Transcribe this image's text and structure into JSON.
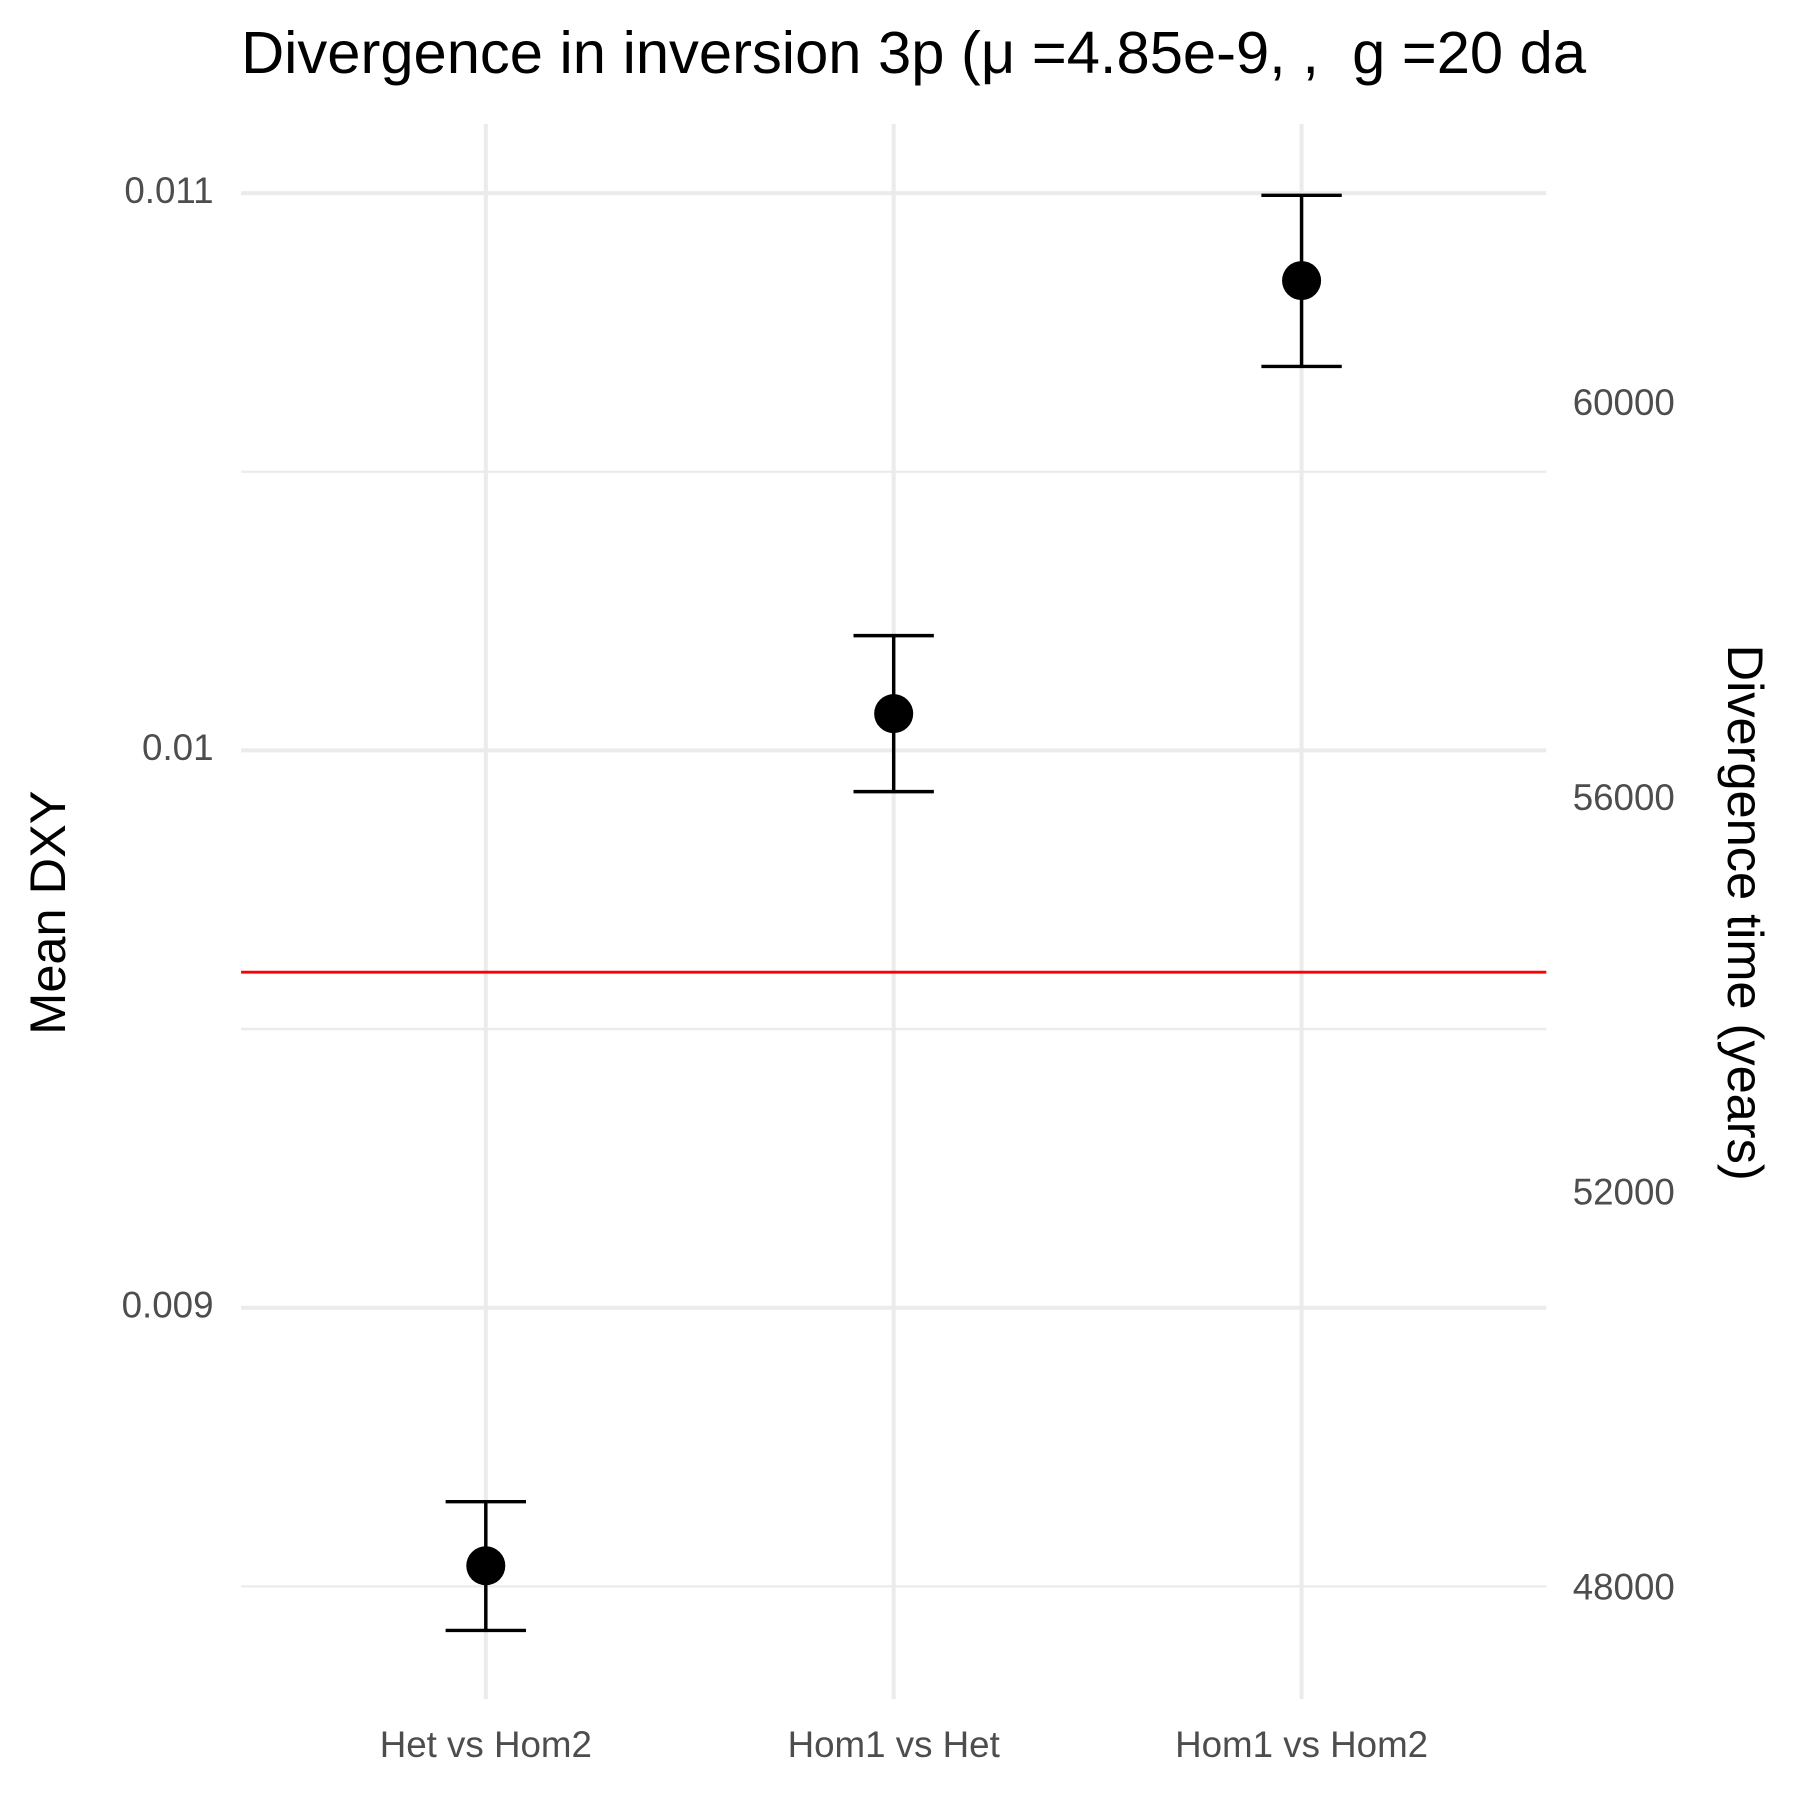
{
  "chart_data": {
    "type": "errorpoint",
    "title": "Divergence in inversion 3p (μ =4.85e-9, ,  g =20 da",
    "y_label": "Mean DXY",
    "y2_label": "Divergence time (years)",
    "categories": [
      "Het vs Hom2",
      "Hom1 vs Het",
      "Hom1 vs Hom2"
    ],
    "series": [
      {
        "color": "#000000",
        "values": [
          0.008537,
          0.010066,
          0.010843
        ],
        "lower": [
          0.008421,
          0.009926,
          0.010689
        ],
        "upper": [
          0.008652,
          0.010206,
          0.010996
        ]
      }
    ],
    "reference_line": {
      "value": 0.009602,
      "color": "#ff0000"
    },
    "ylim": [
      0.008298,
      0.011124
    ],
    "yticks": [
      0.009,
      0.01,
      {
        "value": 0.011,
        "label": "0.011"
      }
    ],
    "y2lim": [
      46895,
      62849
    ],
    "y2ticks": [
      48000,
      52000,
      56000,
      60000
    ],
    "grid": true,
    "minor_grid": true
  }
}
